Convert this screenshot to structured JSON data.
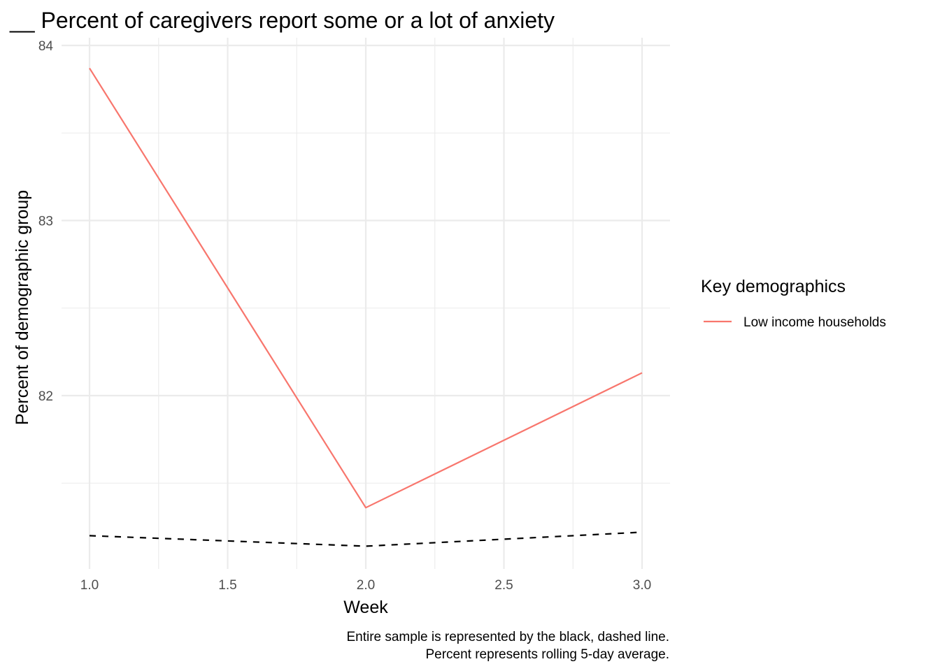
{
  "chart_data": {
    "type": "line",
    "title": "__ Percent of caregivers report some or a lot of anxiety",
    "xlabel": "Week",
    "ylabel": "Percent of demographic group",
    "xlim": [
      0.995,
      3.1
    ],
    "ylim": [
      80.99,
      84.0
    ],
    "x_ticks": [
      1.0,
      1.5,
      2.0,
      2.5,
      3.0
    ],
    "x_tick_labels": [
      "1.0",
      "1.5",
      "2.0",
      "2.5",
      "3.0"
    ],
    "y_ticks": [
      82,
      83,
      84
    ],
    "y_tick_labels": [
      "82",
      "83",
      "84"
    ],
    "grid": true,
    "legend": {
      "title": "Key demographics",
      "placement": "right"
    },
    "series": [
      {
        "name": "Low income households",
        "x": [
          1.0,
          2.0,
          3.0
        ],
        "values": [
          83.87,
          81.36,
          82.13
        ],
        "color": "#f8766d",
        "dashed": false,
        "in_legend": true
      },
      {
        "x": [
          1.0,
          2.0,
          3.0
        ],
        "values": [
          81.2,
          81.14,
          81.22
        ],
        "color": "#000000",
        "dashed": true,
        "in_legend": false
      }
    ],
    "caption": [
      "Entire sample is represented by the black, dashed line.",
      "Percent represents rolling 5-day average."
    ]
  }
}
